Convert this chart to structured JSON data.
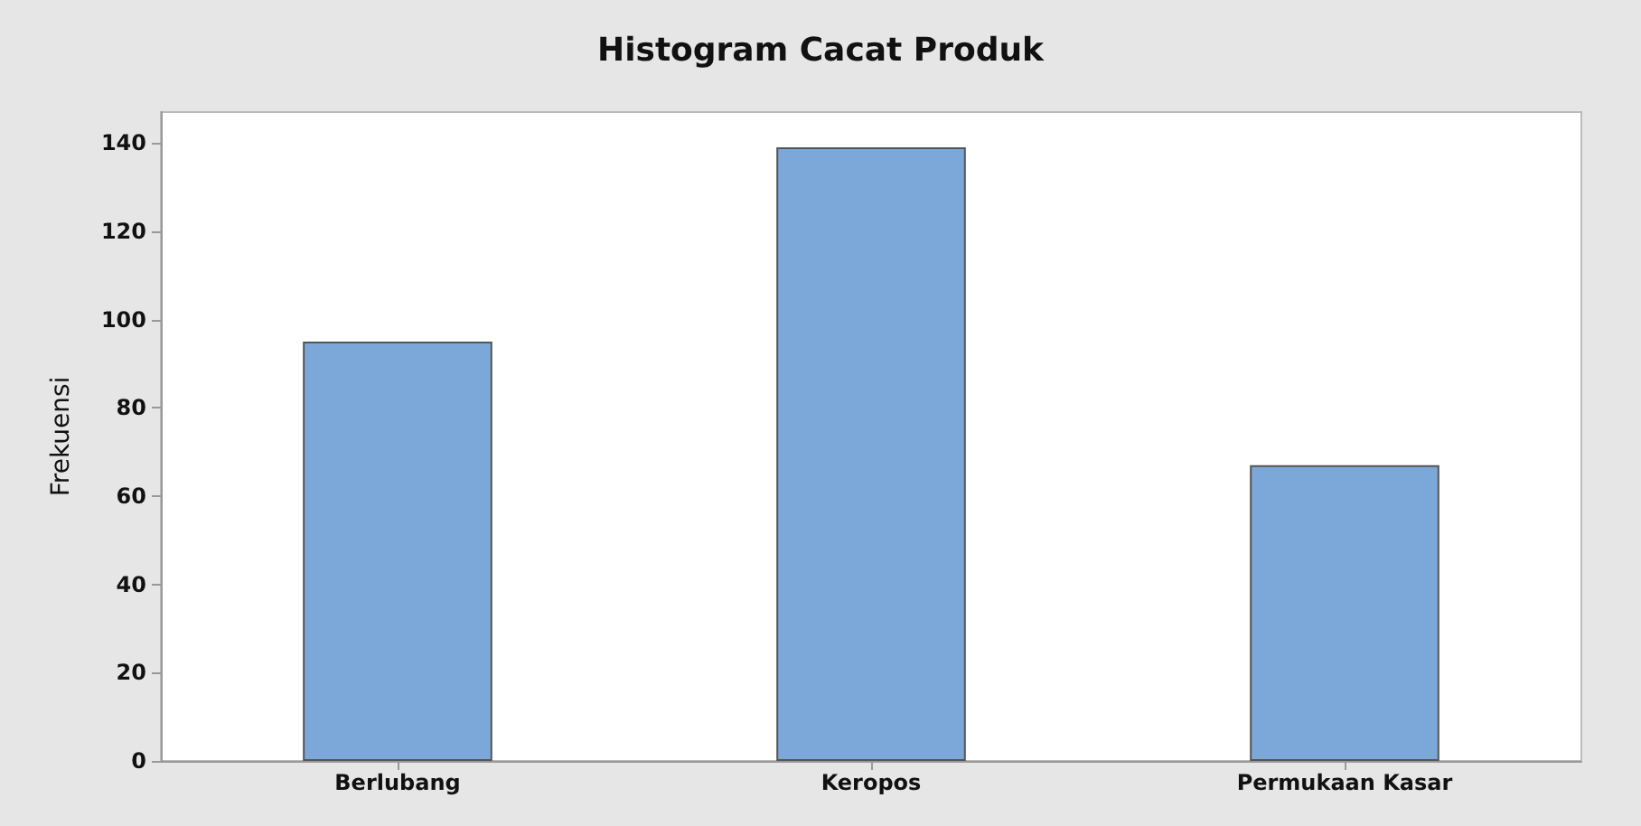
{
  "chart_data": {
    "type": "bar",
    "title": "Histogram Cacat Produk",
    "ylabel": "Frekuensi",
    "categories": [
      "Berlubang",
      "Keropos",
      "Permukaan Kasar"
    ],
    "values": [
      95,
      139,
      67
    ],
    "color": "#7ba7d9",
    "ylim": [
      0,
      147
    ],
    "yticks": [
      0,
      20,
      40,
      60,
      80,
      100,
      120,
      140
    ],
    "grid": false
  }
}
